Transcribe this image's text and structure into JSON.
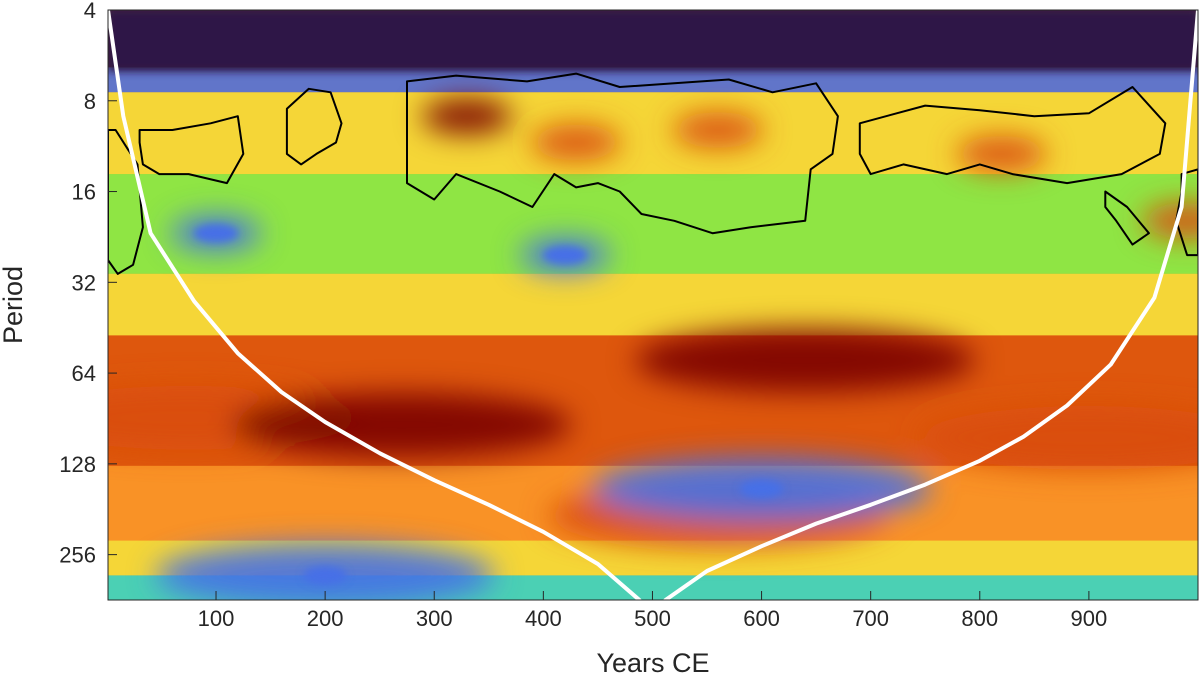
{
  "chart_data": {
    "type": "heatmap",
    "title": "",
    "xlabel": "Years CE",
    "ylabel": "Period",
    "xlim": [
      1,
      1000
    ],
    "ylim": [
      4,
      362
    ],
    "y_scale": "log2",
    "y_reversed": true,
    "x_ticks": [
      100,
      200,
      300,
      400,
      500,
      600,
      700,
      800,
      900
    ],
    "y_ticks": [
      4,
      8,
      16,
      32,
      64,
      128,
      256
    ],
    "colormap": [
      "#2e1647",
      "#4670e6",
      "#2ddbce",
      "#7cf34a",
      "#f5e23b",
      "#f99227",
      "#d94c09",
      "#7a0403"
    ],
    "cone_of_influence": {
      "color": "#ffffff",
      "x": [
        1,
        15,
        40,
        80,
        120,
        160,
        200,
        250,
        300,
        350,
        400,
        450,
        488,
        512,
        550,
        600,
        650,
        700,
        750,
        800,
        840,
        880,
        920,
        960,
        985,
        1000
      ],
      "period": [
        4,
        9,
        22,
        37,
        55,
        74,
        93,
        118,
        145,
        175,
        215,
        275,
        362,
        362,
        290,
        240,
        202,
        175,
        150,
        125,
        104,
        82,
        60,
        36,
        18,
        4
      ]
    },
    "significance_contours": {
      "color": "#000000",
      "level": "95%",
      "regions": [
        {
          "x": [
            1,
            8,
            28,
            33,
            24,
            10,
            1
          ],
          "period": [
            10,
            10,
            13,
            21,
            28,
            30,
            27
          ]
        },
        {
          "x": [
            30,
            60,
            95,
            120,
            125,
            110,
            75,
            48,
            33,
            30
          ],
          "period": [
            10,
            10,
            9.5,
            9,
            12,
            15,
            14,
            14,
            13,
            11
          ]
        },
        {
          "x": [
            165,
            185,
            205,
            215,
            210,
            192,
            178,
            165
          ],
          "period": [
            8.5,
            7.3,
            7.5,
            9.5,
            11,
            12,
            13,
            12
          ]
        },
        {
          "x": [
            275,
            320,
            385,
            430,
            470,
            520,
            570,
            610,
            650,
            670,
            665,
            645,
            640,
            590,
            555,
            520,
            490,
            470,
            450,
            430,
            410,
            390,
            360,
            320,
            300,
            275
          ],
          "period": [
            6.9,
            6.6,
            6.9,
            6.5,
            7.2,
            7,
            6.8,
            7.5,
            7,
            9,
            12,
            13.5,
            20,
            21,
            22,
            20,
            19,
            16,
            15,
            15.5,
            14,
            18,
            16,
            14,
            17,
            15
          ]
        },
        {
          "x": [
            690,
            750,
            800,
            850,
            900,
            940,
            970,
            965,
            930,
            880,
            830,
            800,
            770,
            730,
            700,
            690
          ],
          "period": [
            9.5,
            8.3,
            8.6,
            9,
            8.8,
            7.2,
            9.5,
            12,
            14,
            15,
            14,
            13,
            14,
            13,
            14,
            12
          ]
        },
        {
          "x": [
            915,
            935,
            955,
            940,
            925,
            915
          ],
          "period": [
            16,
            18,
            22,
            24,
            20,
            18
          ]
        },
        {
          "x": [
            985,
            1000,
            1000,
            990,
            980,
            985
          ],
          "period": [
            14,
            13.5,
            26,
            26,
            20,
            16
          ]
        }
      ]
    },
    "power_structure": [
      {
        "x": 75,
        "period": 90,
        "power": 0.92
      },
      {
        "x": 270,
        "period": 95,
        "power": 1.0
      },
      {
        "x": 640,
        "period": 58,
        "power": 0.95
      },
      {
        "x": 560,
        "period": 190,
        "power": 0.88
      },
      {
        "x": 900,
        "period": 105,
        "power": 0.85
      },
      {
        "x": 330,
        "period": 9,
        "power": 0.95
      },
      {
        "x": 430,
        "period": 11,
        "power": 0.9
      },
      {
        "x": 560,
        "period": 10,
        "power": 0.9
      },
      {
        "x": 820,
        "period": 12,
        "power": 0.85
      },
      {
        "x": 990,
        "period": 20,
        "power": 0.9
      },
      {
        "x": 100,
        "period": 22,
        "power": 0.1
      },
      {
        "x": 420,
        "period": 26,
        "power": 0.1
      },
      {
        "x": 600,
        "period": 155,
        "power": 0.1
      },
      {
        "x": 200,
        "period": 300,
        "power": 0.2
      }
    ]
  }
}
